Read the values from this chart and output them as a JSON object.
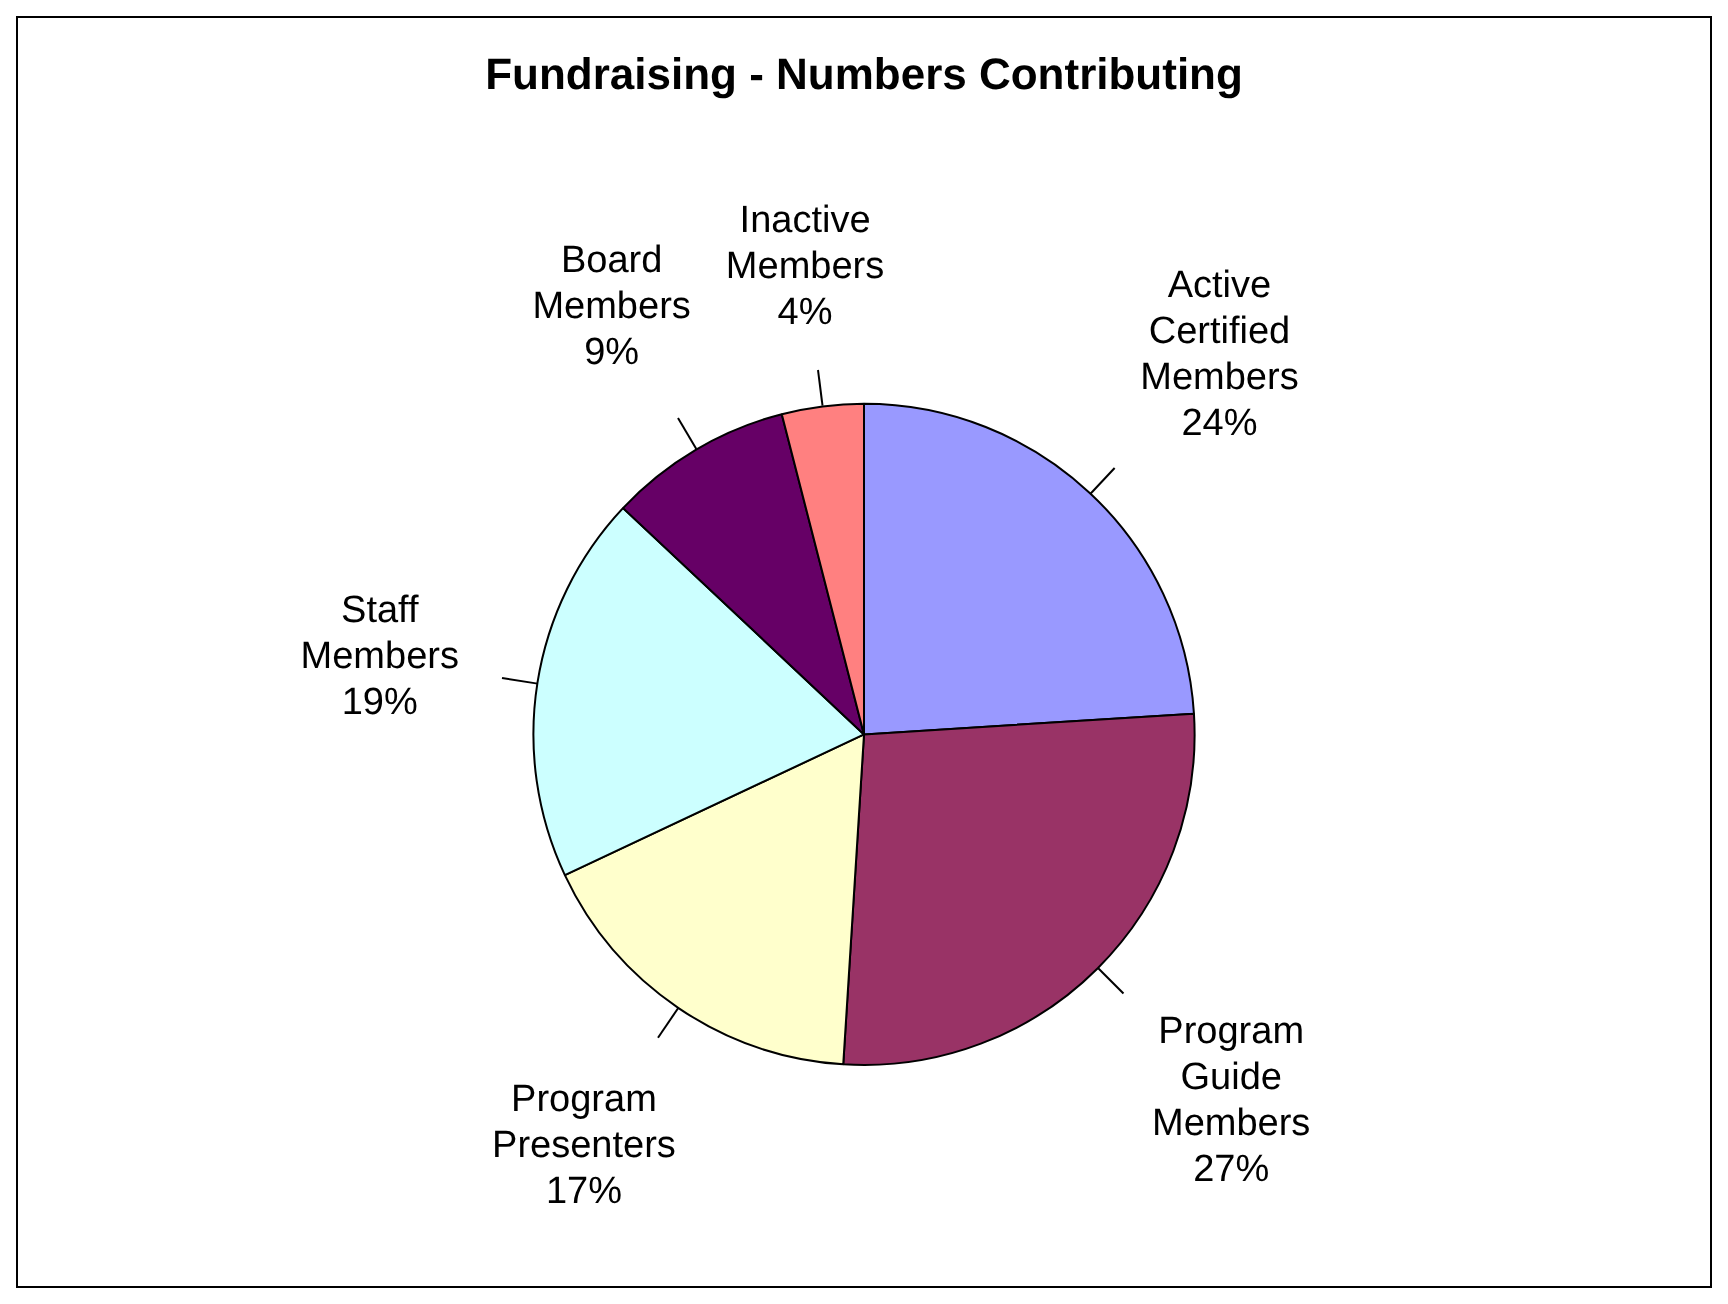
{
  "chart_data": {
    "type": "pie",
    "title": "Fundraising - Numbers Contributing",
    "categories": [
      "Active Certified Members",
      "Program Guide Members",
      "Program Presenters",
      "Staff Members",
      "Board Members",
      "Inactive Members"
    ],
    "values": [
      24,
      27,
      17,
      19,
      9,
      4
    ],
    "colors": [
      "#9999ff",
      "#993366",
      "#ffffcc",
      "#ccffff",
      "#660066",
      "#ff8080"
    ],
    "value_labels": [
      "24%",
      "27%",
      "17%",
      "19%",
      "9%",
      "4%"
    ],
    "legend": false
  }
}
